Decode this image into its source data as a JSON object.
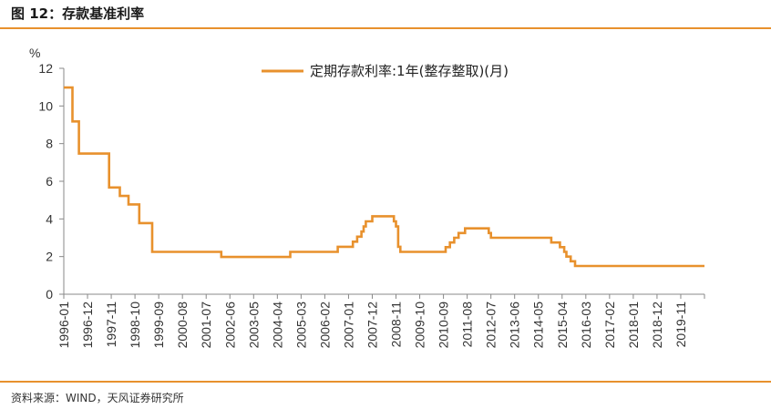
{
  "header": {
    "title": "图 12：存款基准利率"
  },
  "footer": {
    "source": "资料来源：WIND，天风证券研究所"
  },
  "colors": {
    "accent": "#e8912d",
    "series": "#e8912d",
    "axis": "#888888"
  },
  "chart_data": {
    "type": "line",
    "title": "",
    "ylabel": "%",
    "xlabel": "",
    "ylim": [
      0,
      12
    ],
    "yticks": [
      0,
      2,
      4,
      6,
      8,
      10,
      12
    ],
    "xlim": [
      "1996-01",
      "2020-10"
    ],
    "xticks": [
      "1996-01",
      "1996-12",
      "1997-11",
      "1998-10",
      "1999-09",
      "2000-08",
      "2001-07",
      "2002-06",
      "2003-05",
      "2004-04",
      "2005-03",
      "2006-02",
      "2007-01",
      "2007-12",
      "2008-11",
      "2009-10",
      "2010-09",
      "2011-08",
      "2012-07",
      "2013-06",
      "2014-05",
      "2015-04",
      "2016-03",
      "2017-02",
      "2018-01",
      "2018-12",
      "2019-11"
    ],
    "legend": "top-center",
    "grid": false,
    "series": [
      {
        "name": "定期存款利率:1年(整存整取)(月)",
        "step": true,
        "points": [
          [
            "1996-01",
            10.98
          ],
          [
            "1996-05",
            9.18
          ],
          [
            "1996-08",
            7.47
          ],
          [
            "1997-10",
            5.67
          ],
          [
            "1998-03",
            5.22
          ],
          [
            "1998-07",
            4.77
          ],
          [
            "1998-12",
            3.78
          ],
          [
            "1999-06",
            2.25
          ],
          [
            "2002-02",
            1.98
          ],
          [
            "2004-10",
            2.25
          ],
          [
            "2006-08",
            2.52
          ],
          [
            "2007-03",
            2.79
          ],
          [
            "2007-05",
            3.06
          ],
          [
            "2007-07",
            3.33
          ],
          [
            "2007-08",
            3.6
          ],
          [
            "2007-09",
            3.87
          ],
          [
            "2007-12",
            4.14
          ],
          [
            "2008-10",
            3.87
          ],
          [
            "2008-11",
            3.6
          ],
          [
            "2008-12",
            2.52
          ],
          [
            "2009-01",
            2.25
          ],
          [
            "2010-10",
            2.5
          ],
          [
            "2010-12",
            2.75
          ],
          [
            "2011-02",
            3.0
          ],
          [
            "2011-04",
            3.25
          ],
          [
            "2011-07",
            3.5
          ],
          [
            "2012-06",
            3.25
          ],
          [
            "2012-07",
            3.0
          ],
          [
            "2014-11",
            2.75
          ],
          [
            "2015-03",
            2.5
          ],
          [
            "2015-05",
            2.25
          ],
          [
            "2015-06",
            2.0
          ],
          [
            "2015-08",
            1.75
          ],
          [
            "2015-10",
            1.5
          ],
          [
            "2020-10",
            1.5
          ]
        ]
      }
    ]
  }
}
